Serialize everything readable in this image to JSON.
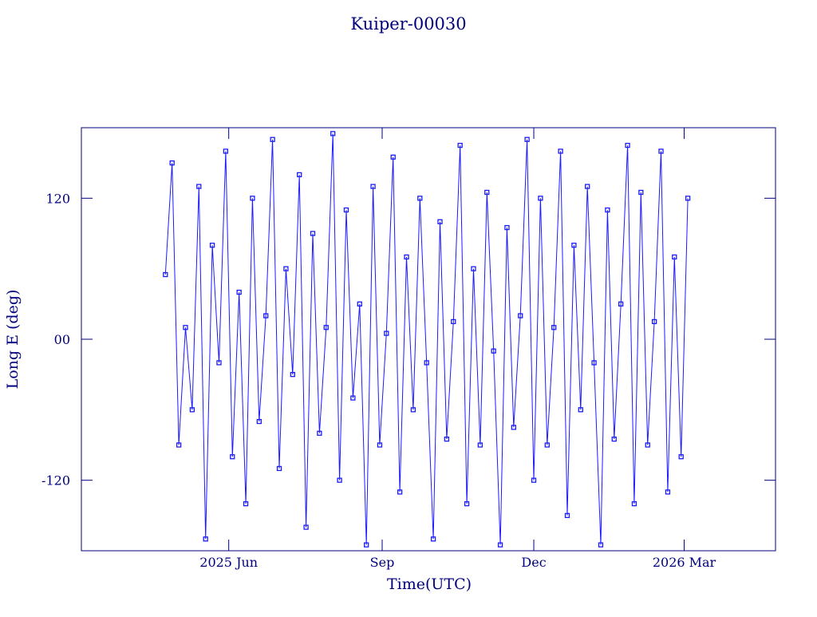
{
  "chart_data": {
    "type": "line",
    "title": "Kuiper-00030",
    "xlabel": "Time(UTC)",
    "ylabel": "Long E (deg)",
    "color": "#1a1aff",
    "axis_color": "#00007f",
    "x": [
      2025.31,
      2025.321,
      2025.332,
      2025.343,
      2025.354,
      2025.365,
      2025.376,
      2025.387,
      2025.398,
      2025.409,
      2025.42,
      2025.431,
      2025.442,
      2025.453,
      2025.464,
      2025.475,
      2025.486,
      2025.497,
      2025.508,
      2025.519,
      2025.53,
      2025.541,
      2025.552,
      2025.563,
      2025.574,
      2025.585,
      2025.596,
      2025.607,
      2025.618,
      2025.629,
      2025.64,
      2025.651,
      2025.662,
      2025.673,
      2025.684,
      2025.695,
      2025.706,
      2025.717,
      2025.728,
      2025.739,
      2025.75,
      2025.761,
      2025.772,
      2025.783,
      2025.794,
      2025.805,
      2025.816,
      2025.827,
      2025.838,
      2025.849,
      2025.86,
      2025.871,
      2025.882,
      2025.893,
      2025.904,
      2025.915,
      2025.926,
      2025.937,
      2025.948,
      2025.959,
      2025.97,
      2025.981,
      2025.992,
      2026.003,
      2026.014,
      2026.025,
      2026.036,
      2026.047,
      2026.058,
      2026.069,
      2026.08,
      2026.091,
      2026.102,
      2026.113,
      2026.124,
      2026.135,
      2026.146,
      2026.157,
      2026.168
    ],
    "values": [
      55,
      150,
      -90,
      10,
      -60,
      130,
      -170,
      80,
      -20,
      160,
      -100,
      40,
      -140,
      120,
      -70,
      20,
      170,
      -110,
      60,
      -30,
      140,
      -160,
      90,
      -80,
      10,
      175,
      -120,
      110,
      -50,
      30,
      -175,
      130,
      -90,
      5,
      155,
      -130,
      70,
      -60,
      120,
      -20,
      -170,
      100,
      -85,
      15,
      165,
      -140,
      60,
      -90,
      125,
      -10,
      -175,
      95,
      -75,
      20,
      170,
      -120,
      120,
      -90,
      10,
      160,
      -150,
      80,
      -60,
      130,
      -20,
      -175,
      110,
      -85,
      30,
      165,
      -140,
      125,
      -90,
      15,
      160,
      -130,
      70,
      -100,
      120
    ],
    "xlim": [
      2025.172,
      2026.312
    ],
    "xticks": [
      {
        "value": 2025.414,
        "label": "2025 Jun"
      },
      {
        "value": 2025.666,
        "label": "Sep"
      },
      {
        "value": 2025.915,
        "label": "Dec"
      },
      {
        "value": 2026.162,
        "label": "2026 Mar"
      }
    ],
    "ylim": [
      -180,
      180
    ],
    "yticks": [
      -120,
      {
        "value": 0,
        "label": "00"
      },
      120
    ]
  }
}
